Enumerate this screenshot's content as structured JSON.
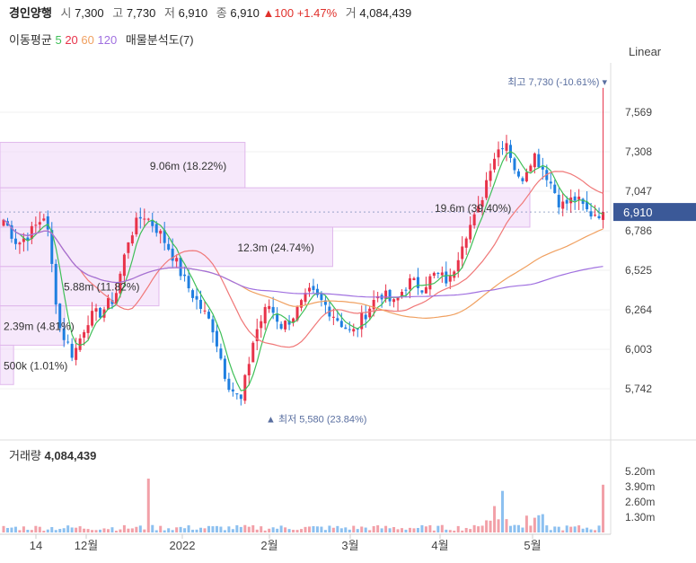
{
  "header": {
    "name": "경인양행",
    "open_label": "시",
    "open": "7,300",
    "high_label": "고",
    "high": "7,730",
    "low_label": "저",
    "low": "6,910",
    "close_label": "종",
    "close": "6,910",
    "change": "▲100 +1.47%",
    "volume_label": "거",
    "volume": "4,084,439"
  },
  "ma_legend": {
    "label": "이동평균",
    "p5": "5",
    "p20": "20",
    "p60": "60",
    "p120": "120",
    "profile_label": "매물분석도(7)"
  },
  "scale_button": "Linear",
  "colors": {
    "up": "#e8334a",
    "down": "#1f7fe0",
    "ma5": "#3fbf58",
    "ma20": "#f07878",
    "ma60": "#f0a060",
    "ma120": "#a070e0",
    "profile": "#f0d8f8",
    "price_badge": "#3b5998"
  },
  "chart_data": {
    "type": "candlestick",
    "y_ticks": [
      "7,569",
      "7,308",
      "7,047",
      "6,786",
      "6,525",
      "6,264",
      "6,003",
      "5,742"
    ],
    "x_ticks": [
      "14",
      "12월",
      "2022",
      "2월",
      "3월",
      "4월",
      "5월"
    ],
    "current_price": "6,910",
    "max_label": "최고 7,730 (-10.61%)",
    "min_label": "최저 5,580 (23.84%)",
    "max_price": 7730,
    "min_price": 5580,
    "volume_title": "거래량",
    "volume_value": "4,084,439",
    "volume_ticks": [
      "5.20m",
      "3.90m",
      "2.60m",
      "1.30m"
    ],
    "ohlc_anchor_closes": [
      6860,
      6700,
      6780,
      6900,
      6150,
      5960,
      6200,
      6250,
      6350,
      6750,
      6900,
      6800,
      6650,
      6450,
      6300,
      6150,
      5800,
      5650,
      6100,
      6300,
      6150,
      6250,
      6380,
      6300,
      6200,
      6100,
      6250,
      6380,
      6300,
      6450,
      6420,
      6500,
      6450,
      6750,
      6900,
      7250,
      7400,
      7100,
      7300,
      7150,
      6950,
      7000,
      6900,
      6910
    ],
    "volume_profile": [
      {
        "label": "9.06m (18.22%)",
        "price_from": 7070,
        "price_to": 7370,
        "share": 18.22
      },
      {
        "label": "19.6m (39.40%)",
        "price_from": 6810,
        "price_to": 7070,
        "share": 39.4
      },
      {
        "label": "12.3m (24.74%)",
        "price_from": 6550,
        "price_to": 6810,
        "share": 24.74
      },
      {
        "label": "5.88m (11.82%)",
        "price_from": 6290,
        "price_to": 6550,
        "share": 11.82
      },
      {
        "label": "2.39m (4.81%)",
        "price_from": 6030,
        "price_to": 6290,
        "share": 4.81
      },
      {
        "label": "500k (1.01%)",
        "price_from": 5770,
        "price_to": 6030,
        "share": 1.01
      }
    ]
  }
}
